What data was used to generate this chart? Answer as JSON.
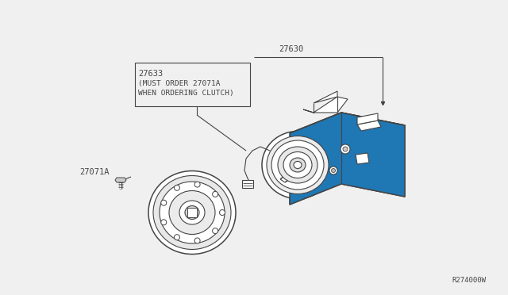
{
  "bg_color": "#f0f0f0",
  "line_color": "#444444",
  "part_number_main": "27630",
  "part_number_clutch": "27633",
  "part_note_line1": "(MUST ORDER 27071A",
  "part_note_line2": "WHEN ORDERING CLUTCH)",
  "part_bolt": "27071A",
  "watermark": "R274000W",
  "lw": 0.8,
  "lw_thick": 1.1
}
